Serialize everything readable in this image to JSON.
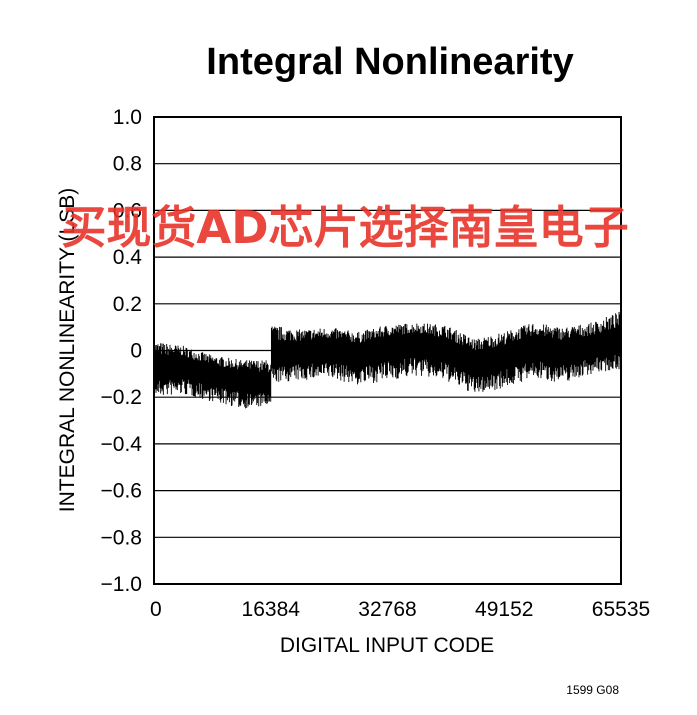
{
  "chart_data": {
    "type": "line",
    "title": "Integral Nonlinearity",
    "xlabel": "DIGITAL INPUT CODE",
    "ylabel": "INTEGRAL NONLINEARITY (LSB)",
    "xlim": [
      0,
      65535
    ],
    "ylim": [
      -1.0,
      1.0
    ],
    "x_ticks": [
      0,
      16384,
      32768,
      49152,
      65535
    ],
    "x_tick_labels": [
      "0",
      "16384",
      "32768",
      "49152",
      "65535"
    ],
    "y_ticks": [
      1.0,
      0.8,
      0.6,
      0.4,
      0.2,
      0,
      -0.2,
      -0.4,
      -0.6,
      -0.8,
      -1.0
    ],
    "y_tick_labels": [
      "1.0",
      "0.8",
      "0.6",
      "0.4",
      "0.2",
      "0",
      "−0.2",
      "−0.4",
      "−0.6",
      "−0.8",
      "−1.0"
    ],
    "grid": "horizontal",
    "series": [
      {
        "x": [
          0,
          4096,
          8192,
          12288,
          16384,
          16400,
          20480,
          24576,
          28672,
          32768,
          36864,
          40960,
          45056,
          49152,
          53248,
          57344,
          61440,
          65535
        ],
        "y_center": [
          -0.07,
          -0.06,
          -0.1,
          -0.12,
          -0.14,
          -0.02,
          0.0,
          0.01,
          -0.01,
          0.02,
          0.04,
          0.01,
          -0.05,
          -0.02,
          0.02,
          0.0,
          0.02,
          0.04
        ],
        "y_upper": [
          0.04,
          0.02,
          -0.02,
          -0.04,
          -0.04,
          0.11,
          0.09,
          0.1,
          0.08,
          0.11,
          0.12,
          0.11,
          0.05,
          0.08,
          0.12,
          0.1,
          0.12,
          0.17
        ],
        "y_lower": [
          -0.2,
          -0.19,
          -0.22,
          -0.25,
          -0.24,
          -0.14,
          -0.13,
          -0.12,
          -0.15,
          -0.13,
          -0.11,
          -0.13,
          -0.19,
          -0.16,
          -0.12,
          -0.14,
          -0.1,
          -0.08
        ],
        "color": "#000000"
      }
    ],
    "footnote": "1599 G08"
  },
  "watermark": "买现货AD芯片选择南皇电子"
}
